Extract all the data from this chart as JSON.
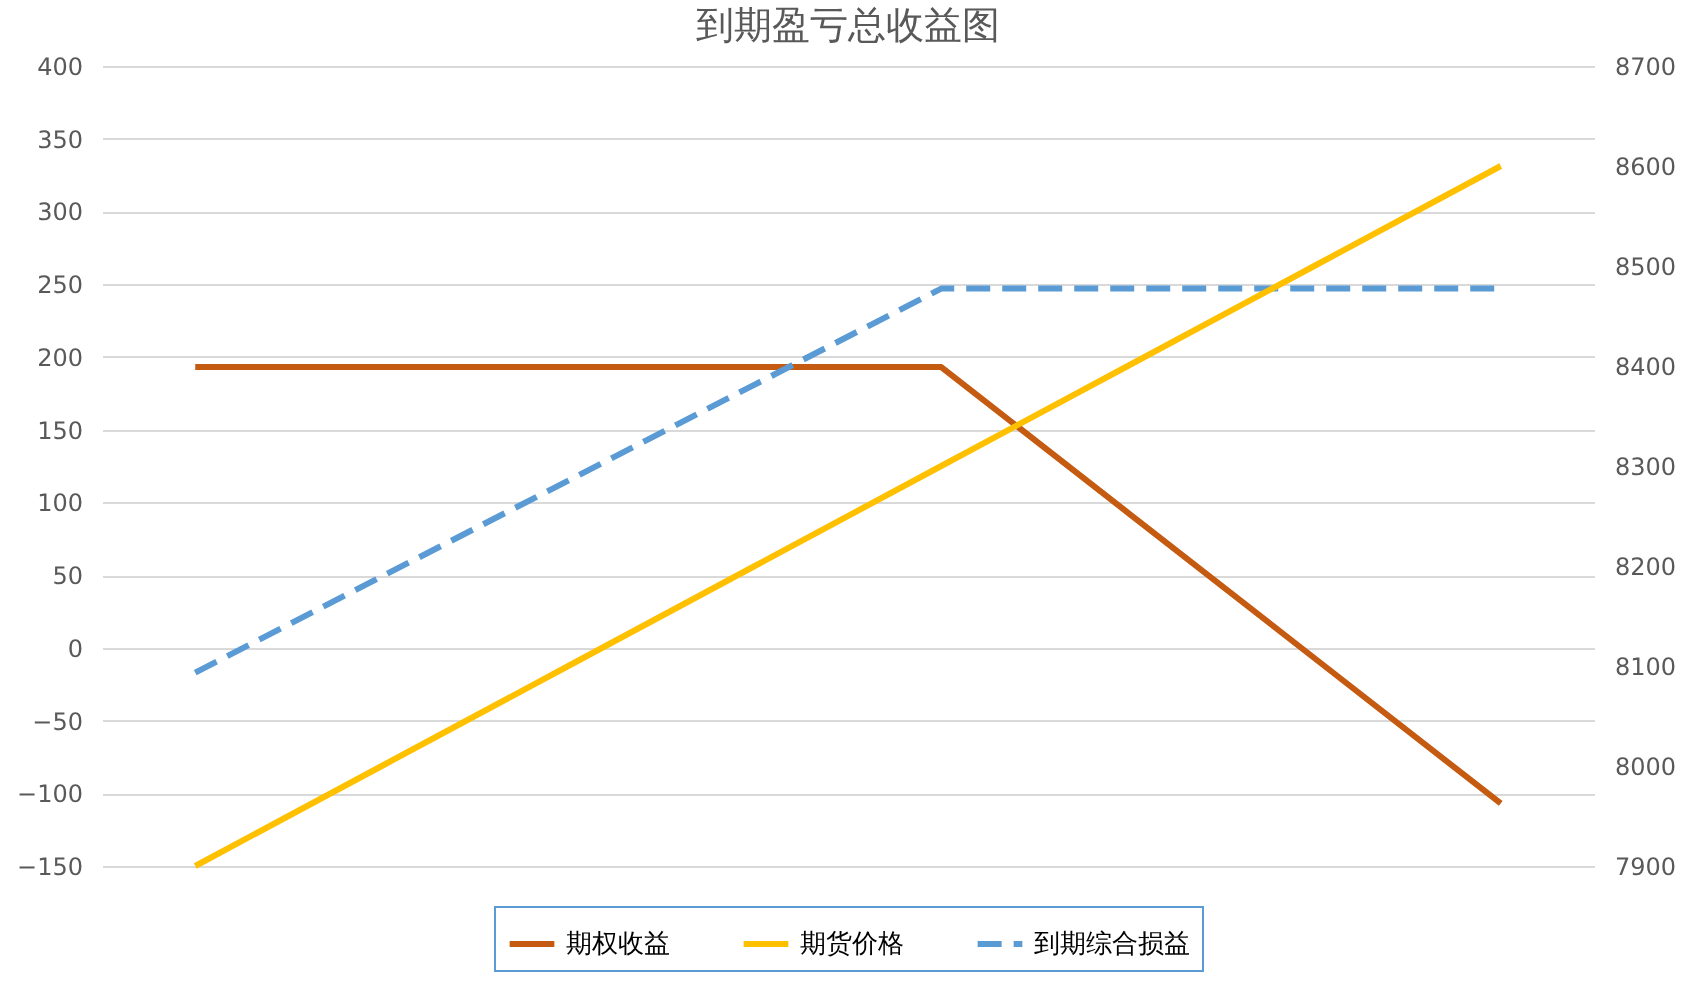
{
  "chart_data": {
    "type": "line",
    "title": "到期盈亏总收益图",
    "categories": [
      null,
      null,
      null,
      null,
      null,
      null,
      null,
      null
    ],
    "series": [
      {
        "name": "期权收益",
        "color": "#c55a11",
        "line_style": "solid",
        "values": [
          193,
          193,
          193,
          193,
          193,
          93,
          -7,
          -107
        ]
      },
      {
        "name": "期货价格",
        "color": "#ffc000",
        "line_style": "solid",
        "axis": "y2",
        "values": [
          7900,
          8000,
          8100,
          8200,
          8300,
          8400,
          8500,
          8600
        ]
      },
      {
        "name": "到期综合损益",
        "color": "#5b9bd5",
        "line_style": "dashed",
        "values": [
          -17,
          49,
          115,
          181,
          247,
          247,
          247,
          247
        ]
      }
    ],
    "ylim": [
      -150,
      400
    ],
    "yticks": [
      -150,
      -100,
      -50,
      0,
      50,
      100,
      150,
      200,
      250,
      300,
      350,
      400
    ],
    "y2lim": [
      7900,
      8700
    ],
    "y2ticks": [
      7900,
      8000,
      8100,
      8200,
      8300,
      8400,
      8500,
      8600,
      8700
    ],
    "grid": "y",
    "legend": "bottom",
    "marker": "none"
  }
}
